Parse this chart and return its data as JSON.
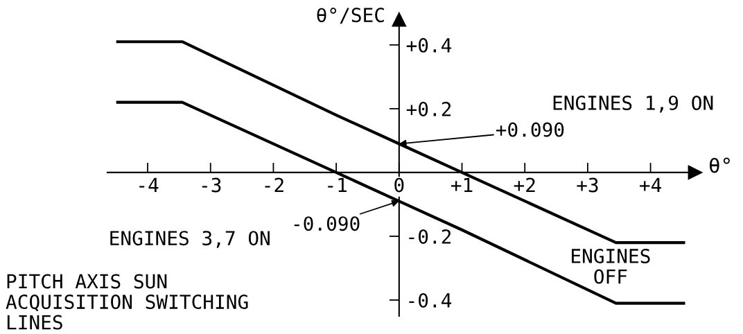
{
  "chart_data": {
    "type": "line",
    "title": "PITCH AXIS SUN\nACQUISITION SWITCHING\nLINES",
    "xlabel": "θ°",
    "ylabel": "θ°/SEC",
    "xlim": [
      -4.64,
      4.71
    ],
    "ylim": [
      -0.45,
      0.48
    ],
    "xticks": [
      -4,
      -3,
      -2,
      -1,
      0,
      {
        "value": 1,
        "label": "+1"
      },
      {
        "value": 2,
        "label": "+2"
      },
      {
        "value": 3,
        "label": "+3"
      },
      {
        "value": 4,
        "label": "+4"
      }
    ],
    "yticks": [
      -0.4,
      -0.2,
      {
        "value": 0.2,
        "label": "+0.2"
      },
      {
        "value": 0.4,
        "label": "+0.4"
      }
    ],
    "series": [
      {
        "color": "#000000",
        "x": [
          -4.5,
          -3.45,
          -1,
          0,
          1,
          3.45,
          4.55
        ],
        "values": [
          0.41,
          0.41,
          0.18,
          0.09,
          0,
          -0.22,
          -0.22
        ]
      },
      {
        "color": "#000000",
        "x": [
          -4.5,
          -3.45,
          -1,
          0,
          1,
          3.45,
          4.55
        ],
        "values": [
          0.22,
          0.22,
          0,
          -0.09,
          -0.18,
          -0.41,
          -0.41
        ]
      }
    ],
    "annotations": [
      {
        "text": "+0.090",
        "x": 0,
        "y": 0.09
      },
      {
        "text": "-0.090",
        "x": 0,
        "y": -0.09
      },
      "ENGINES 1,9 ON",
      "ENGINES 3,7 ON",
      "ENGINES\nOFF"
    ]
  }
}
